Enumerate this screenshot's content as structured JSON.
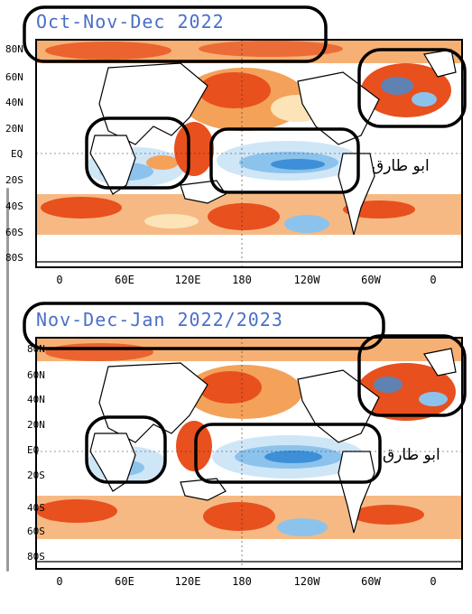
{
  "panels": [
    {
      "title": "Oct-Nov-Dec 2022",
      "y_labels": [
        "80N",
        "60N",
        "40N",
        "20N",
        "EQ",
        "20S",
        "40S",
        "60S",
        "80S"
      ],
      "x_labels": [
        "0",
        "60E",
        "120E",
        "180",
        "120W",
        "60W",
        "0"
      ],
      "watermark": "ابو طارق"
    },
    {
      "title": "Nov-Dec-Jan 2022/2023",
      "y_labels": [
        "80N",
        "60N",
        "40N",
        "20N",
        "EQ",
        "20S",
        "40S",
        "60S",
        "80S"
      ],
      "x_labels": [
        "0",
        "60E",
        "120E",
        "180",
        "120W",
        "60W",
        "0"
      ],
      "watermark": "ابو طارق"
    }
  ],
  "colors": {
    "warm_strong": "#e8501e",
    "warm_mid": "#f4a25a",
    "warm_light": "#fde3b8",
    "cool_light": "#cfe6f7",
    "cool_mid": "#8cc3ec",
    "cool_strong": "#3d8fd8",
    "title": "#4a6fc8"
  }
}
